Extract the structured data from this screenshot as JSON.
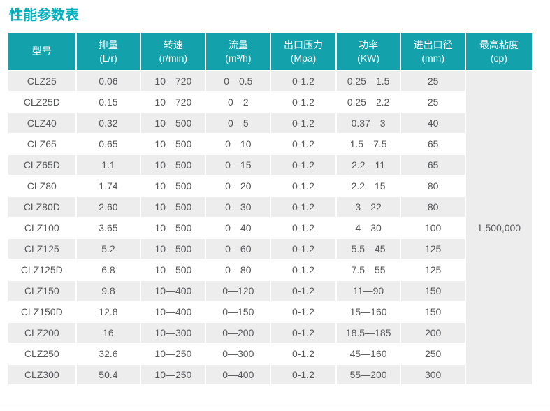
{
  "page_title": "性能参数表",
  "colors": {
    "header_bg": "#13a1ab",
    "title_text": "#00b0bd",
    "row_alt_bg": "#ededee",
    "body_text": "#58595b"
  },
  "chart_data": {
    "type": "table",
    "title": "性能参数表",
    "columns": [
      {
        "name": "型号",
        "unit": ""
      },
      {
        "name": "排量",
        "unit": "(L/r)"
      },
      {
        "name": "转速",
        "unit": "(r/min)"
      },
      {
        "name": "流量",
        "unit": "(m³/h)"
      },
      {
        "name": "出口压力",
        "unit": "(Mpa)"
      },
      {
        "name": "功率",
        "unit": "(KW)"
      },
      {
        "name": "进出口径",
        "unit": "(mm)"
      },
      {
        "name": "最高粘度",
        "unit": "(cp)"
      }
    ],
    "rows": [
      [
        "CLZ25",
        "0.06",
        "10—720",
        "0—0.5",
        "0-1.2",
        "0.25—1.5",
        "25"
      ],
      [
        "CLZ25D",
        "0.15",
        "10—720",
        "0—2",
        "0-1.2",
        "0.25—2.2",
        "25"
      ],
      [
        "CLZ40",
        "0.32",
        "10—500",
        "0—5",
        "0-1.2",
        "0.37—3",
        "40"
      ],
      [
        "CLZ65",
        "0.65",
        "10—500",
        "0—10",
        "0-1.2",
        "1.5—7.5",
        "65"
      ],
      [
        "CLZ65D",
        "1.1",
        "10—500",
        "0—15",
        "0-1.2",
        "2.2—11",
        "65"
      ],
      [
        "CLZ80",
        "1.74",
        "10—500",
        "0—20",
        "0-1.2",
        "2.2—15",
        "80"
      ],
      [
        "CLZ80D",
        "2.60",
        "10—500",
        "0—30",
        "0-1.2",
        "3—22",
        "80"
      ],
      [
        "CLZ100",
        "3.65",
        "10—500",
        "0—40",
        "0-1.2",
        "4—30",
        "100"
      ],
      [
        "CLZ125",
        "5.2",
        "10—500",
        "0—60",
        "0-1.2",
        "5.5—45",
        "125"
      ],
      [
        "CLZ125D",
        "6.8",
        "10—500",
        "0—80",
        "0-1.2",
        "7.5—55",
        "125"
      ],
      [
        "CLZ150",
        "9.8",
        "10—400",
        "0—120",
        "0-1.2",
        "11—90",
        "150"
      ],
      [
        "CLZ150D",
        "12.8",
        "10—400",
        "0—150",
        "0-1.2",
        "15—160",
        "150"
      ],
      [
        "CLZ200",
        "16",
        "10—300",
        "0—200",
        "0-1.2",
        "18.5—185",
        "200"
      ],
      [
        "CLZ250",
        "32.6",
        "10—250",
        "0—300",
        "0-1.2",
        "45—160",
        "250"
      ],
      [
        "CLZ300",
        "50.4",
        "10—250",
        "0—400",
        "0-1.2",
        "55—200",
        "300"
      ]
    ],
    "merged_cell": {
      "column": "最高粘度(cp)",
      "value": "1,500,000",
      "spans_rows": "all 15 rows"
    }
  }
}
